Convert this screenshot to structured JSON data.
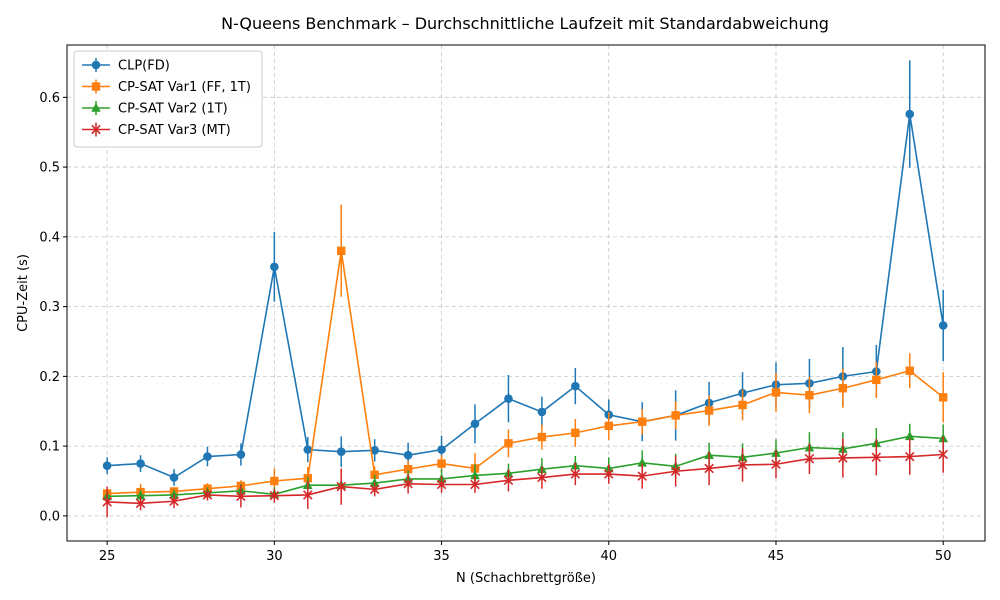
{
  "chart_data": {
    "type": "line",
    "title": "N-Queens Benchmark – Durchschnittliche Laufzeit mit Standardabweichung",
    "xlabel": "N (Schachbrettgröße)",
    "ylabel": "CPU-Zeit (s)",
    "xlim": [
      23.8,
      51.25
    ],
    "ylim": [
      -0.036,
      0.675
    ],
    "xticks": [
      25,
      30,
      35,
      40,
      45,
      50
    ],
    "yticks": [
      0.0,
      0.1,
      0.2,
      0.3,
      0.4,
      0.5,
      0.6
    ],
    "ytick_labels": [
      "0.0",
      "0.1",
      "0.2",
      "0.3",
      "0.4",
      "0.5",
      "0.6"
    ],
    "grid": true,
    "legend_position": "top-left",
    "x": [
      25,
      26,
      27,
      28,
      29,
      30,
      31,
      32,
      33,
      34,
      35,
      36,
      37,
      38,
      39,
      40,
      41,
      42,
      43,
      44,
      45,
      46,
      47,
      48,
      49,
      50
    ],
    "series": [
      {
        "name": "CLP(FD)",
        "color": "#1f77b4",
        "marker": "circle",
        "values": [
          0.072,
          0.075,
          0.055,
          0.085,
          0.088,
          0.357,
          0.095,
          0.092,
          0.094,
          0.087,
          0.095,
          0.132,
          0.168,
          0.149,
          0.186,
          0.145,
          0.135,
          0.144,
          0.162,
          0.176,
          0.188,
          0.19,
          0.2,
          0.207,
          0.576,
          0.273
        ],
        "errors": [
          0.012,
          0.012,
          0.012,
          0.014,
          0.016,
          0.05,
          0.018,
          0.022,
          0.016,
          0.018,
          0.02,
          0.028,
          0.034,
          0.022,
          0.026,
          0.022,
          0.028,
          0.036,
          0.03,
          0.03,
          0.032,
          0.035,
          0.042,
          0.038,
          0.077,
          0.051
        ]
      },
      {
        "name": "CP-SAT Var1 (FF, 1T)",
        "color": "#ff7f0e",
        "marker": "square",
        "values": [
          0.032,
          0.034,
          0.035,
          0.039,
          0.043,
          0.05,
          0.054,
          0.38,
          0.059,
          0.067,
          0.075,
          0.068,
          0.104,
          0.113,
          0.119,
          0.129,
          0.135,
          0.144,
          0.151,
          0.159,
          0.177,
          0.173,
          0.183,
          0.195,
          0.208,
          0.17
        ],
        "errors": [
          0.006,
          0.012,
          0.006,
          0.008,
          0.008,
          0.018,
          0.016,
          0.066,
          0.012,
          0.012,
          0.012,
          0.022,
          0.02,
          0.018,
          0.02,
          0.02,
          0.018,
          0.02,
          0.022,
          0.022,
          0.028,
          0.026,
          0.028,
          0.026,
          0.025,
          0.036
        ]
      },
      {
        "name": "CP-SAT Var2 (1T)",
        "color": "#2ca02c",
        "marker": "triangle",
        "values": [
          0.028,
          0.029,
          0.03,
          0.033,
          0.036,
          0.031,
          0.044,
          0.044,
          0.047,
          0.053,
          0.053,
          0.058,
          0.061,
          0.067,
          0.072,
          0.068,
          0.076,
          0.071,
          0.087,
          0.084,
          0.09,
          0.098,
          0.096,
          0.104,
          0.114,
          0.111
        ],
        "errors": [
          0.008,
          0.008,
          0.008,
          0.008,
          0.01,
          0.01,
          0.012,
          0.012,
          0.012,
          0.012,
          0.014,
          0.016,
          0.014,
          0.016,
          0.014,
          0.016,
          0.018,
          0.018,
          0.018,
          0.02,
          0.02,
          0.022,
          0.024,
          0.022,
          0.018,
          0.02
        ]
      },
      {
        "name": "CP-SAT Var3 (MT)",
        "color": "#d62728",
        "marker": "x",
        "values": [
          0.02,
          0.018,
          0.021,
          0.03,
          0.028,
          0.029,
          0.03,
          0.042,
          0.038,
          0.046,
          0.045,
          0.045,
          0.051,
          0.055,
          0.06,
          0.06,
          0.057,
          0.064,
          0.068,
          0.073,
          0.074,
          0.082,
          0.083,
          0.084,
          0.085,
          0.088
        ],
        "errors": [
          0.022,
          0.01,
          0.01,
          0.008,
          0.016,
          0.01,
          0.02,
          0.026,
          0.01,
          0.014,
          0.012,
          0.012,
          0.016,
          0.016,
          0.016,
          0.014,
          0.018,
          0.022,
          0.024,
          0.024,
          0.02,
          0.022,
          0.028,
          0.026,
          0.026,
          0.026
        ]
      }
    ]
  }
}
